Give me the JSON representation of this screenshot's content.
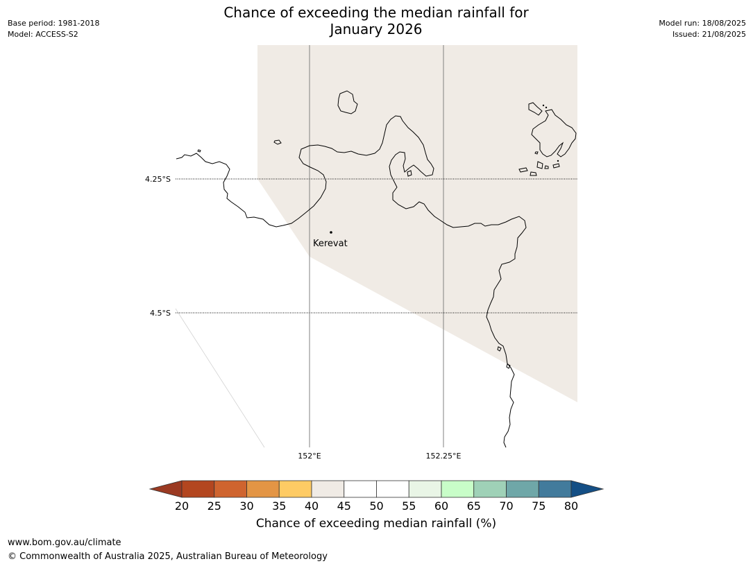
{
  "title": {
    "line1": "Chance of exceeding the median rainfall for",
    "line2": "January 2026"
  },
  "meta_left": {
    "base_period": "Base period: 1981-2018",
    "model": "Model: ACCESS-S2"
  },
  "meta_right": {
    "model_run": "Model run: 18/08/2025",
    "issued": "Issued: 21/08/2025"
  },
  "map": {
    "lat_labels": [
      "4.25°S",
      "4.5°S"
    ],
    "lon_labels": [
      "152°E",
      "152.25°E"
    ],
    "town": {
      "name": "Kerevat"
    },
    "fill_color": "#f0ebe5",
    "coast_color": "#000000"
  },
  "colorbar": {
    "label": "Chance of exceeding median rainfall (%)",
    "ticks": [
      "20",
      "25",
      "30",
      "35",
      "40",
      "45",
      "50",
      "55",
      "60",
      "65",
      "70",
      "75",
      "80"
    ],
    "under_color": "#9b3a22",
    "over_color": "#144f85",
    "colors": [
      "#b3461f",
      "#cf642f",
      "#e39545",
      "#fecb64",
      "#f0ebe5",
      "#ffffff",
      "#ffffff",
      "#e9f5e6",
      "#c8fdc8",
      "#9fd1b7",
      "#6fa7a8",
      "#427b9c"
    ]
  },
  "footer": {
    "url": "www.bom.gov.au/climate",
    "copyright": "© Commonwealth of Australia 2025, Australian Bureau of Meteorology"
  }
}
